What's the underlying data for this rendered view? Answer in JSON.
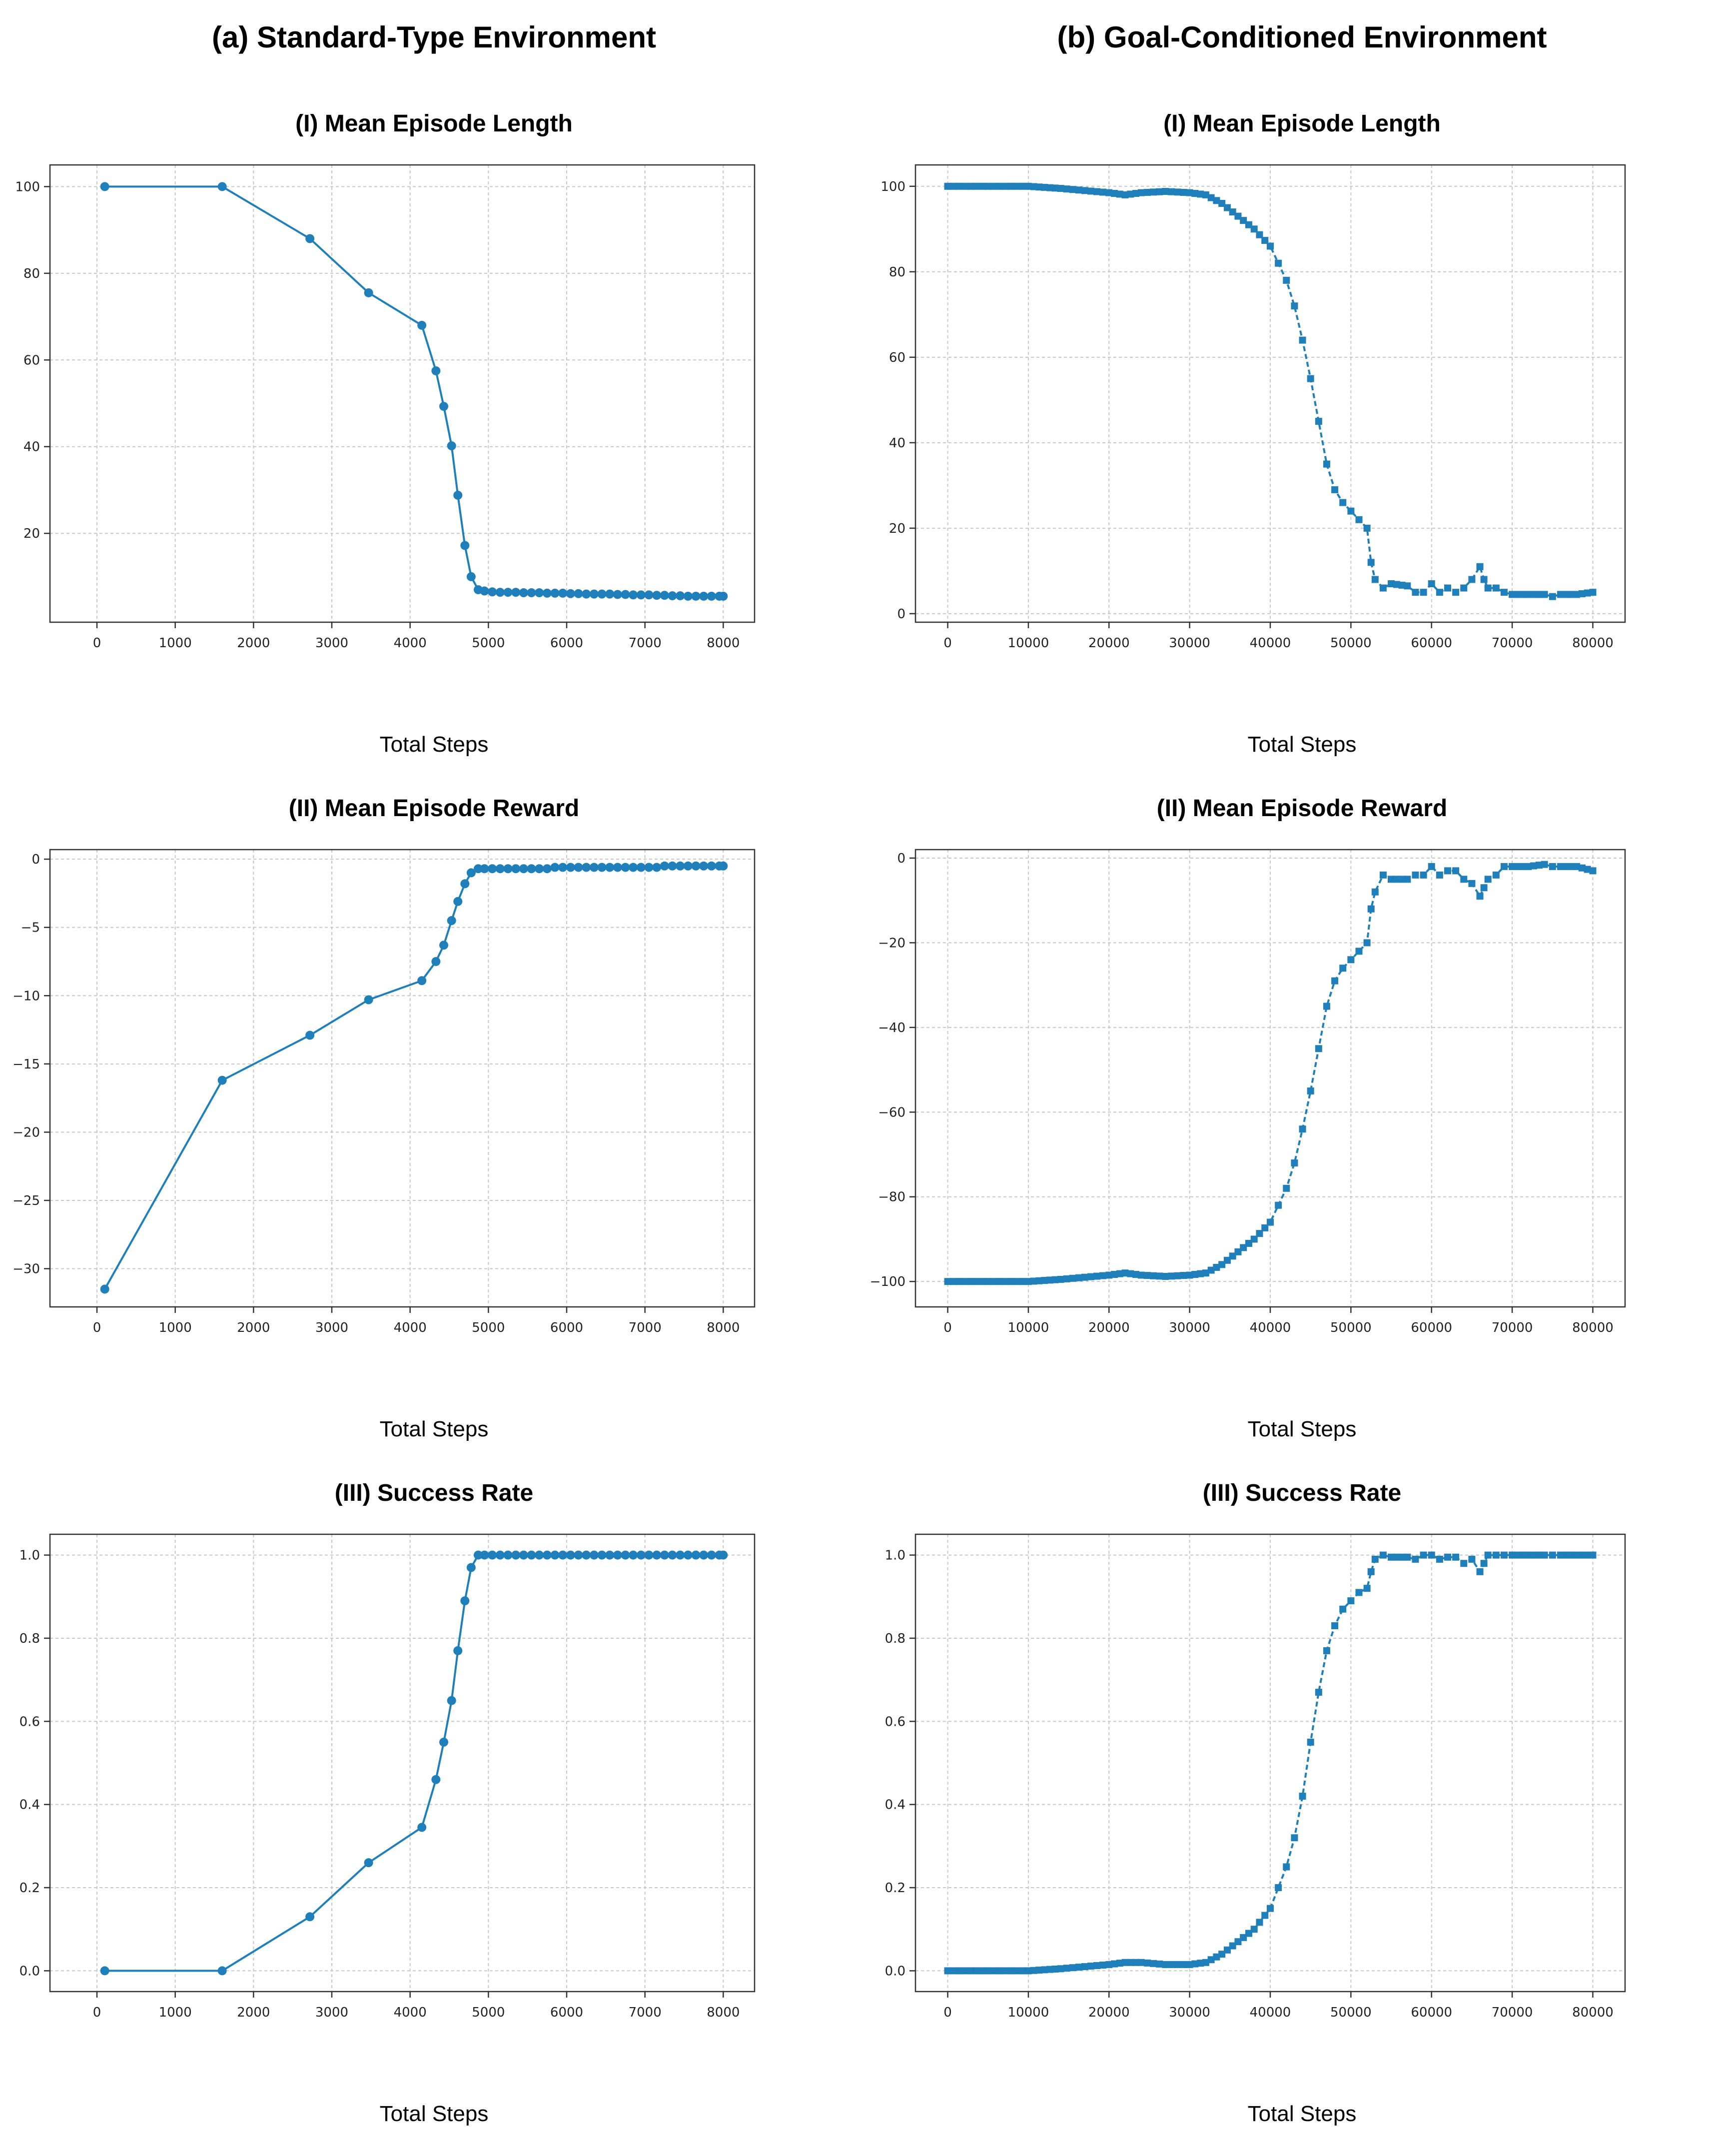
{
  "columns": [
    {
      "title": "(a) Standard-Type Environment"
    },
    {
      "title": "(b) Goal-Conditioned  Environment"
    }
  ],
  "line_color": "#1f7fba",
  "chart_data": [
    {
      "type": "line",
      "column": 0,
      "row": 0,
      "style": "marker-circle",
      "title": "(I) Mean Episode Length",
      "xlabel": "Total Steps",
      "ylabel": "",
      "xlim": [
        -600,
        8400
      ],
      "ylim": [
        -0.5,
        105
      ],
      "xticks": [
        0,
        1000,
        2000,
        3000,
        4000,
        5000,
        6000,
        7000,
        8000
      ],
      "yticks": [
        20,
        40,
        60,
        80,
        100
      ],
      "x": [
        100,
        1600,
        2720,
        3470,
        4150,
        4330,
        4430,
        4530,
        4610,
        4700,
        4780,
        4870,
        4950,
        5050,
        5150,
        5250,
        5350,
        5450,
        5550,
        5650,
        5750,
        5850,
        5950,
        6050,
        6150,
        6250,
        6350,
        6450,
        6550,
        6650,
        6750,
        6850,
        6950,
        7050,
        7150,
        7250,
        7350,
        7450,
        7550,
        7650,
        7750,
        7850,
        7950,
        8000
      ],
      "y": [
        100,
        100,
        88,
        75.5,
        68,
        57.5,
        49.3,
        40.2,
        28.8,
        17.2,
        10,
        7,
        6.7,
        6.5,
        6.4,
        6.4,
        6.4,
        6.3,
        6.3,
        6.3,
        6.2,
        6.2,
        6.2,
        6.1,
        6.1,
        6.0,
        6.0,
        6.0,
        6.0,
        5.9,
        5.9,
        5.8,
        5.8,
        5.8,
        5.7,
        5.7,
        5.6,
        5.6,
        5.5,
        5.5,
        5.5,
        5.5,
        5.5,
        5.5
      ]
    },
    {
      "type": "line",
      "column": 0,
      "row": 1,
      "style": "marker-circle",
      "title": "(II) Mean Episode Reward",
      "xlabel": "Total Steps",
      "ylabel": "",
      "xlim": [
        -600,
        8400
      ],
      "ylim": [
        -32.8,
        0.7
      ],
      "xticks": [
        0,
        1000,
        2000,
        3000,
        4000,
        5000,
        6000,
        7000,
        8000
      ],
      "yticks": [
        0,
        -5,
        -10,
        -15,
        -20,
        -25,
        -30
      ],
      "x": [
        100,
        1600,
        2720,
        3470,
        4150,
        4330,
        4430,
        4530,
        4610,
        4700,
        4780,
        4870,
        4950,
        5050,
        5150,
        5250,
        5350,
        5450,
        5550,
        5650,
        5750,
        5850,
        5950,
        6050,
        6150,
        6250,
        6350,
        6450,
        6550,
        6650,
        6750,
        6850,
        6950,
        7050,
        7150,
        7250,
        7350,
        7450,
        7550,
        7650,
        7750,
        7850,
        7950,
        8000
      ],
      "y": [
        -31.5,
        -16.2,
        -12.9,
        -10.3,
        -8.9,
        -7.5,
        -6.3,
        -4.5,
        -3.1,
        -1.8,
        -1.0,
        -0.7,
        -0.7,
        -0.7,
        -0.7,
        -0.7,
        -0.7,
        -0.7,
        -0.7,
        -0.7,
        -0.7,
        -0.6,
        -0.6,
        -0.6,
        -0.6,
        -0.6,
        -0.6,
        -0.6,
        -0.6,
        -0.6,
        -0.6,
        -0.6,
        -0.6,
        -0.6,
        -0.6,
        -0.5,
        -0.5,
        -0.5,
        -0.5,
        -0.5,
        -0.5,
        -0.5,
        -0.5,
        -0.5
      ]
    },
    {
      "type": "line",
      "column": 0,
      "row": 2,
      "style": "marker-circle",
      "title": "(III) Success Rate",
      "xlabel": "Total Steps",
      "ylabel": "",
      "xlim": [
        -600,
        8400
      ],
      "ylim": [
        -0.05,
        1.05
      ],
      "xticks": [
        0,
        1000,
        2000,
        3000,
        4000,
        5000,
        6000,
        7000,
        8000
      ],
      "yticks": [
        0.0,
        0.2,
        0.4,
        0.6,
        0.8,
        1.0
      ],
      "x": [
        100,
        1600,
        2720,
        3470,
        4150,
        4330,
        4430,
        4530,
        4610,
        4700,
        4780,
        4870,
        4950,
        5050,
        5150,
        5250,
        5350,
        5450,
        5550,
        5650,
        5750,
        5850,
        5950,
        6050,
        6150,
        6250,
        6350,
        6450,
        6550,
        6650,
        6750,
        6850,
        6950,
        7050,
        7150,
        7250,
        7350,
        7450,
        7550,
        7650,
        7750,
        7850,
        7950,
        8000
      ],
      "y": [
        0,
        0,
        0.13,
        0.26,
        0.345,
        0.46,
        0.55,
        0.65,
        0.77,
        0.89,
        0.97,
        1,
        1,
        1,
        1,
        1,
        1,
        1,
        1,
        1,
        1,
        1,
        1,
        1,
        1,
        1,
        1,
        1,
        1,
        1,
        1,
        1,
        1,
        1,
        1,
        1,
        1,
        1,
        1,
        1,
        1,
        1,
        1,
        1
      ]
    },
    {
      "type": "line",
      "column": 1,
      "row": 0,
      "style": "marker-square-dense",
      "title": "(I) Mean Episode Length",
      "xlabel": "Total Steps",
      "ylabel": "",
      "xlim": [
        -4000,
        84000
      ],
      "ylim": [
        -2,
        105
      ],
      "xticks": [
        0,
        10000,
        20000,
        30000,
        40000,
        50000,
        60000,
        70000,
        80000
      ],
      "yticks": [
        0,
        20,
        40,
        60,
        80,
        100
      ],
      "x": [
        0,
        5000,
        10000,
        14000,
        17000,
        20000,
        22000,
        24000,
        27000,
        30000,
        32000,
        34000,
        36000,
        38000,
        40000,
        41000,
        42000,
        43000,
        44000,
        45000,
        46000,
        47000,
        48000,
        49000,
        50000,
        51000,
        52000,
        52500,
        53000,
        54000,
        55000,
        57000,
        58000,
        59000,
        60000,
        61000,
        62000,
        63000,
        64000,
        65000,
        66000,
        66500,
        67000,
        68000,
        69000,
        70000,
        72000,
        74000,
        75000,
        76000,
        78000,
        80000
      ],
      "y": [
        100,
        100,
        100,
        99.5,
        99,
        98.5,
        98,
        98.5,
        98.8,
        98.5,
        98,
        96,
        93,
        90,
        86,
        82,
        78,
        72,
        64,
        55,
        45,
        35,
        29,
        26,
        24,
        22,
        20,
        12,
        8,
        6,
        7,
        6.5,
        5,
        5,
        7,
        5,
        6,
        5,
        6,
        8,
        11,
        8,
        6,
        6,
        5,
        4.5,
        4.5,
        4.5,
        4,
        4.5,
        4.5,
        5
      ]
    },
    {
      "type": "line",
      "column": 1,
      "row": 1,
      "style": "marker-square-dense",
      "title": "(II) Mean Episode Reward",
      "xlabel": "Total Steps",
      "ylabel": "",
      "xlim": [
        -4000,
        84000
      ],
      "ylim": [
        -106,
        2
      ],
      "xticks": [
        0,
        10000,
        20000,
        30000,
        40000,
        50000,
        60000,
        70000,
        80000
      ],
      "yticks": [
        0,
        -20,
        -40,
        -60,
        -80,
        -100
      ],
      "x": [
        0,
        5000,
        10000,
        14000,
        17000,
        20000,
        22000,
        24000,
        27000,
        30000,
        32000,
        34000,
        36000,
        38000,
        40000,
        41000,
        42000,
        43000,
        44000,
        45000,
        46000,
        47000,
        48000,
        49000,
        50000,
        51000,
        52000,
        52500,
        53000,
        54000,
        55000,
        57000,
        58000,
        59000,
        60000,
        61000,
        62000,
        63000,
        64000,
        65000,
        66000,
        66500,
        67000,
        68000,
        69000,
        70000,
        72000,
        74000,
        75000,
        76000,
        78000,
        80000
      ],
      "y": [
        -100,
        -100,
        -100,
        -99.5,
        -99,
        -98.5,
        -98,
        -98.5,
        -98.8,
        -98.5,
        -98,
        -96,
        -93,
        -90,
        -86,
        -82,
        -78,
        -72,
        -64,
        -55,
        -45,
        -35,
        -29,
        -26,
        -24,
        -22,
        -20,
        -12,
        -8,
        -4,
        -5,
        -5,
        -4,
        -4,
        -2,
        -4,
        -3,
        -3,
        -5,
        -6,
        -9,
        -7,
        -5,
        -4,
        -2,
        -2,
        -2,
        -1.5,
        -2,
        -2,
        -2,
        -3
      ]
    },
    {
      "type": "line",
      "column": 1,
      "row": 2,
      "style": "marker-square-dense",
      "title": "(III) Success Rate",
      "xlabel": "Total Steps",
      "ylabel": "",
      "xlim": [
        -4000,
        84000
      ],
      "ylim": [
        -0.05,
        1.05
      ],
      "xticks": [
        0,
        10000,
        20000,
        30000,
        40000,
        50000,
        60000,
        70000,
        80000
      ],
      "yticks": [
        0.0,
        0.2,
        0.4,
        0.6,
        0.8,
        1.0
      ],
      "x": [
        0,
        5000,
        10000,
        14000,
        17000,
        20000,
        22000,
        24000,
        27000,
        30000,
        32000,
        34000,
        36000,
        38000,
        40000,
        41000,
        42000,
        43000,
        44000,
        45000,
        46000,
        47000,
        48000,
        49000,
        50000,
        51000,
        52000,
        52500,
        53000,
        54000,
        55000,
        57000,
        58000,
        59000,
        60000,
        61000,
        62000,
        63000,
        64000,
        65000,
        66000,
        66500,
        67000,
        68000,
        69000,
        70000,
        72000,
        74000,
        75000,
        76000,
        78000,
        80000
      ],
      "y": [
        0,
        0,
        0,
        0.005,
        0.01,
        0.015,
        0.02,
        0.02,
        0.015,
        0.015,
        0.02,
        0.04,
        0.07,
        0.1,
        0.15,
        0.2,
        0.25,
        0.32,
        0.42,
        0.55,
        0.67,
        0.77,
        0.83,
        0.87,
        0.89,
        0.91,
        0.92,
        0.96,
        0.99,
        1,
        0.995,
        0.995,
        0.99,
        1,
        1,
        0.99,
        0.995,
        0.995,
        0.98,
        0.99,
        0.96,
        0.98,
        1,
        1,
        1,
        1,
        1,
        1,
        1,
        1,
        1,
        1
      ]
    }
  ]
}
